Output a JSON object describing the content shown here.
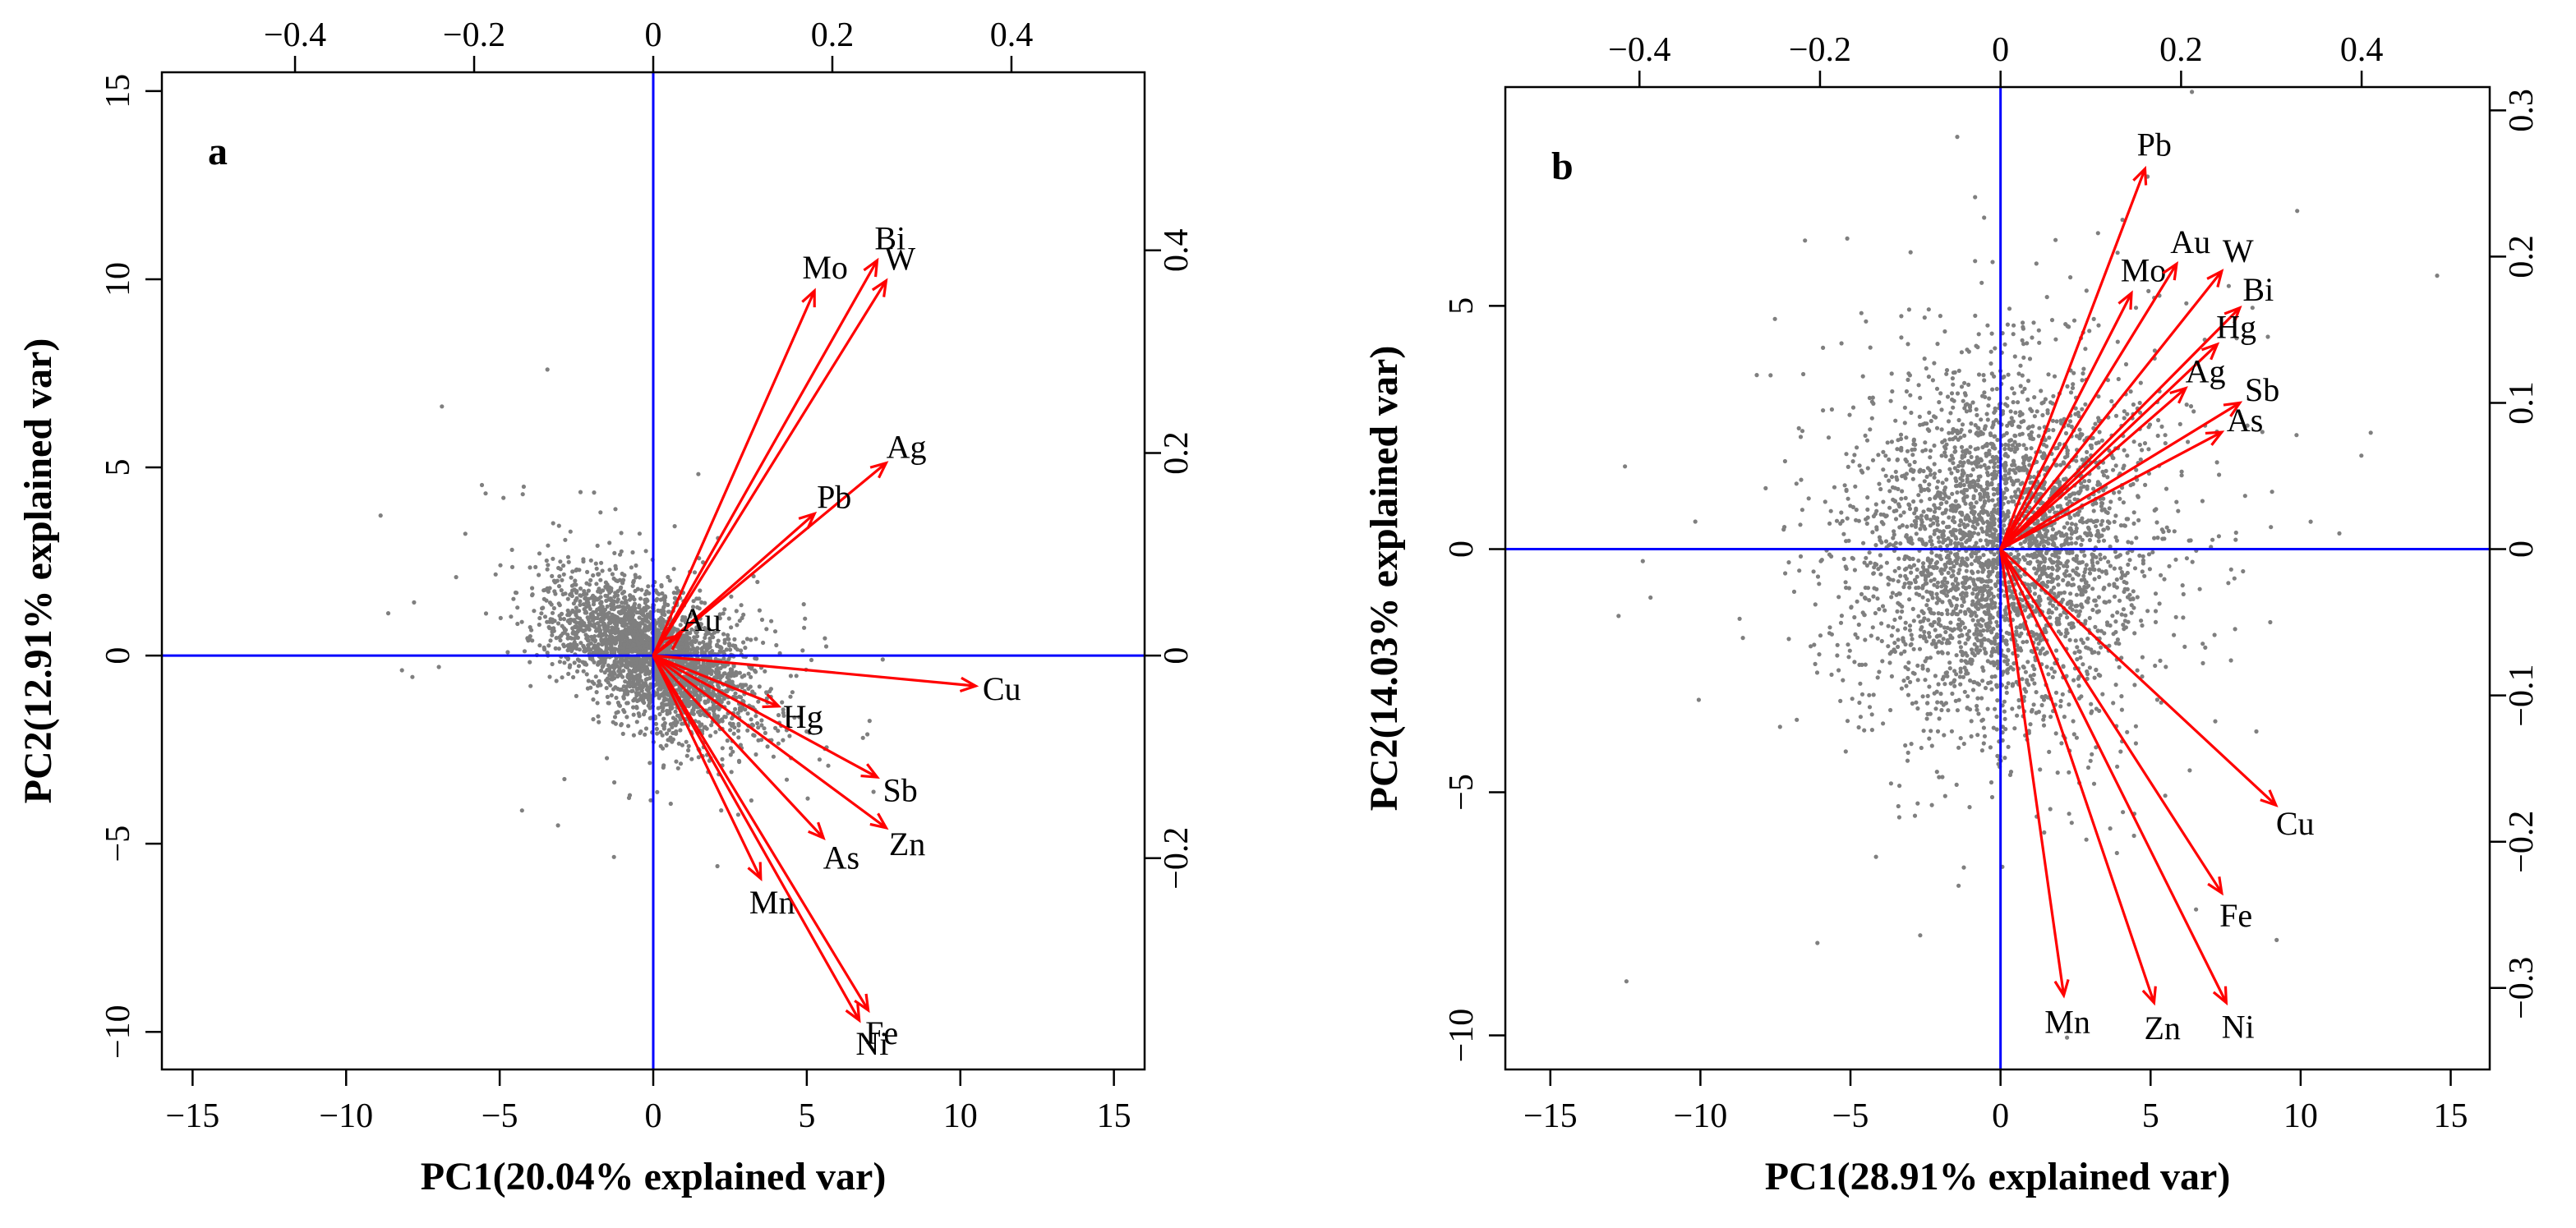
{
  "chart_data": [
    {
      "panel": "a",
      "type": "scatter",
      "title": "",
      "xlabel": "PC1(20.04% explained var)",
      "ylabel": "PC2(12.91% explained var)",
      "xlim": [
        -16,
        16
      ],
      "ylim": [
        -11,
        15.5
      ],
      "xticks": [
        -15,
        -10,
        -5,
        0,
        5,
        10,
        15
      ],
      "yticks": [
        -10,
        -5,
        0,
        5,
        10,
        15
      ],
      "tick_labels_x": [
        "−15",
        "−10",
        "−5",
        "0",
        "5",
        "10",
        "15"
      ],
      "tick_labels_y": [
        "−10",
        "−5",
        "0",
        "5",
        "10",
        "15"
      ],
      "loading_xlim": [
        -0.5487,
        0.5487
      ],
      "loading_ylim": [
        -0.4086,
        0.5758
      ],
      "loading_xticks": [
        -0.4,
        -0.2,
        0,
        0.2,
        0.4
      ],
      "loading_yticks": [
        -0.2,
        0,
        0.2,
        0.4
      ],
      "loading_tick_labels_x": [
        "−0.4",
        "−0.2",
        "0",
        "0.2",
        "0.4"
      ],
      "loading_tick_labels_y": [
        "−0.2",
        "0",
        "0.2",
        "0.4"
      ],
      "scores_cloud": {
        "center": [
          0,
          0
        ],
        "spread": [
          1.6,
          1.0
        ],
        "correlation": -0.55,
        "n": 2800
      },
      "loadings": [
        {
          "name": "Bi",
          "x": 0.25,
          "y": 0.39,
          "label": "Bi"
        },
        {
          "name": "Mo",
          "x": 0.18,
          "y": 0.36,
          "label": "Mo"
        },
        {
          "name": "W",
          "x": 0.26,
          "y": 0.37,
          "label": "W"
        },
        {
          "name": "Ag",
          "x": 0.26,
          "y": 0.19,
          "label": "Ag"
        },
        {
          "name": "Pb",
          "x": 0.18,
          "y": 0.14,
          "label": "Pb"
        },
        {
          "name": "Au",
          "x": 0.03,
          "y": 0.02,
          "label": "Au"
        },
        {
          "name": "Cu",
          "x": 0.36,
          "y": -0.03,
          "label": "Cu"
        },
        {
          "name": "Hg",
          "x": 0.14,
          "y": -0.05,
          "label": "Hg"
        },
        {
          "name": "Sb",
          "x": 0.25,
          "y": -0.12,
          "label": "Sb"
        },
        {
          "name": "Zn",
          "x": 0.26,
          "y": -0.17,
          "label": "Zn"
        },
        {
          "name": "As",
          "x": 0.19,
          "y": -0.18,
          "label": "As"
        },
        {
          "name": "Mn",
          "x": 0.12,
          "y": -0.22,
          "label": "Mn"
        },
        {
          "name": "Fe",
          "x": 0.24,
          "y": -0.35,
          "label": "Fe"
        },
        {
          "name": "Ni",
          "x": 0.23,
          "y": -0.36,
          "label": "Ni"
        }
      ]
    },
    {
      "panel": "b",
      "type": "scatter",
      "title": "",
      "xlabel": "PC1(28.91% explained var)",
      "ylabel": "PC2(14.03% explained var)",
      "xlim": [
        -16.5,
        16.3
      ],
      "ylim": [
        -10.7,
        9.5
      ],
      "xticks": [
        -15,
        -10,
        -5,
        0,
        5,
        10,
        15
      ],
      "yticks": [
        -10,
        -5,
        0,
        5
      ],
      "tick_labels_x": [
        "−15",
        "−10",
        "−5",
        "0",
        "5",
        "10",
        "15"
      ],
      "tick_labels_y": [
        "−10",
        "−5",
        "0",
        "5"
      ],
      "loading_xlim": [
        -0.5486,
        0.5419
      ],
      "loading_ylim": [
        -0.3557,
        0.3159
      ],
      "loading_xticks": [
        -0.4,
        -0.2,
        0,
        0.2,
        0.4
      ],
      "loading_yticks": [
        -0.3,
        -0.2,
        -0.1,
        0,
        0.1,
        0.2,
        0.3
      ],
      "loading_tick_labels_x": [
        "−0.4",
        "−0.2",
        "0",
        "0.2",
        "0.4"
      ],
      "loading_tick_labels_y": [
        "−0.3",
        "−0.2",
        "−0.1",
        "0",
        "0.1",
        "0.2",
        "0.3"
      ],
      "scores_cloud": {
        "center": [
          0,
          0
        ],
        "spread": [
          2.4,
          1.8
        ],
        "correlation": 0.05,
        "n": 3400
      },
      "loadings": [
        {
          "name": "Pb",
          "x": 0.16,
          "y": 0.26,
          "label": "Pb"
        },
        {
          "name": "Mo",
          "x": 0.145,
          "y": 0.175,
          "label": "Mo"
        },
        {
          "name": "Au",
          "x": 0.195,
          "y": 0.195,
          "label": "Au"
        },
        {
          "name": "W",
          "x": 0.245,
          "y": 0.19,
          "label": "W"
        },
        {
          "name": "Bi",
          "x": 0.265,
          "y": 0.165,
          "label": "Bi"
        },
        {
          "name": "Hg",
          "x": 0.24,
          "y": 0.14,
          "label": "Hg"
        },
        {
          "name": "Ag",
          "x": 0.205,
          "y": 0.11,
          "label": "Ag"
        },
        {
          "name": "Sb",
          "x": 0.265,
          "y": 0.1,
          "label": "Sb"
        },
        {
          "name": "As",
          "x": 0.245,
          "y": 0.08,
          "label": "As"
        },
        {
          "name": "Cu",
          "x": 0.305,
          "y": -0.175,
          "label": "Cu"
        },
        {
          "name": "Fe",
          "x": 0.245,
          "y": -0.235,
          "label": "Fe"
        },
        {
          "name": "Mn",
          "x": 0.07,
          "y": -0.305,
          "label": "Mn"
        },
        {
          "name": "Zn",
          "x": 0.17,
          "y": -0.31,
          "label": "Zn"
        },
        {
          "name": "Ni",
          "x": 0.25,
          "y": -0.31,
          "label": "Ni"
        }
      ]
    }
  ],
  "colors": {
    "points": "#7f7f7f",
    "arrows": "#ff0000",
    "reference_lines": "#0000ff",
    "frame": "#000000"
  }
}
